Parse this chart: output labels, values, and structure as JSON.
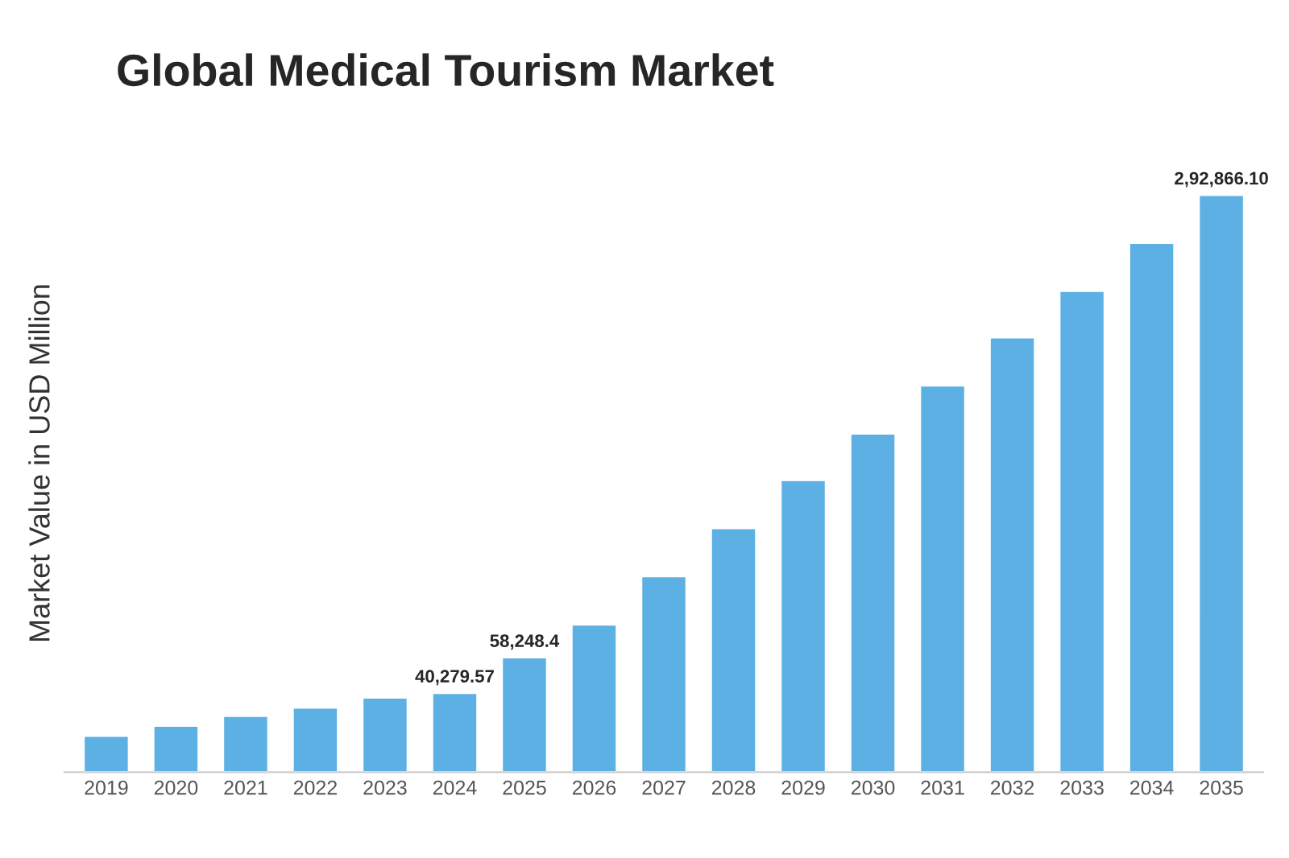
{
  "chart_data": {
    "type": "bar",
    "title": "Global Medical Tourism Market",
    "ylabel": "Market Value in USD Million",
    "categories": [
      "2019",
      "2020",
      "2021",
      "2022",
      "2023",
      "2024",
      "2025",
      "2026",
      "2027",
      "2028",
      "2029",
      "2030",
      "2031",
      "2032",
      "2033",
      "2034",
      "2035"
    ],
    "values": [
      18500,
      23600,
      28600,
      32800,
      37900,
      40279.57,
      58248.4,
      74900,
      99400,
      123800,
      148200,
      171800,
      196200,
      220600,
      244200,
      268600,
      292866.1
    ],
    "value_labels": [
      null,
      null,
      null,
      null,
      null,
      "40,279.57",
      "58,248.4",
      null,
      null,
      null,
      null,
      null,
      null,
      null,
      null,
      null,
      "2,92,866.10"
    ],
    "color": "#5db0e4",
    "grid": false,
    "legend": false
  }
}
